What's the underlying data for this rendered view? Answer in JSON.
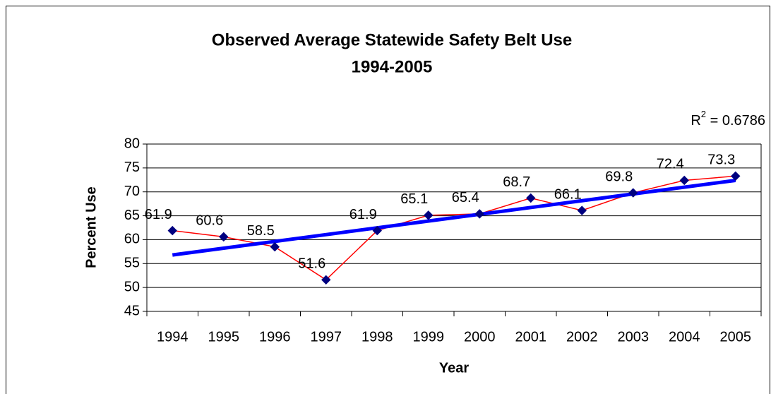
{
  "chart_data": {
    "type": "line",
    "title": [
      "Observed Average Statewide Safety Belt Use",
      "1994-2005"
    ],
    "x_label": "Year",
    "y_label": "Percent Use",
    "categories": [
      "1994",
      "1995",
      "1996",
      "1997",
      "1998",
      "1999",
      "2000",
      "2001",
      "2002",
      "2003",
      "2004",
      "2005"
    ],
    "series": [
      {
        "name": "Percent Use",
        "color": "#ff0000",
        "marker_color": "#000080",
        "values": [
          61.9,
          60.6,
          58.5,
          51.6,
          61.9,
          65.1,
          65.4,
          68.7,
          66.1,
          69.8,
          72.4,
          73.3
        ]
      }
    ],
    "trendline": {
      "kind": "linear",
      "color": "#0000ff",
      "start": 56.8,
      "end": 72.4
    },
    "annotation": {
      "base": "R",
      "sup": "2",
      "rest": " = 0.6786"
    },
    "ylim": [
      45,
      80
    ],
    "yticks": [
      45,
      50,
      55,
      60,
      65,
      70,
      75,
      80
    ],
    "grid": true
  }
}
